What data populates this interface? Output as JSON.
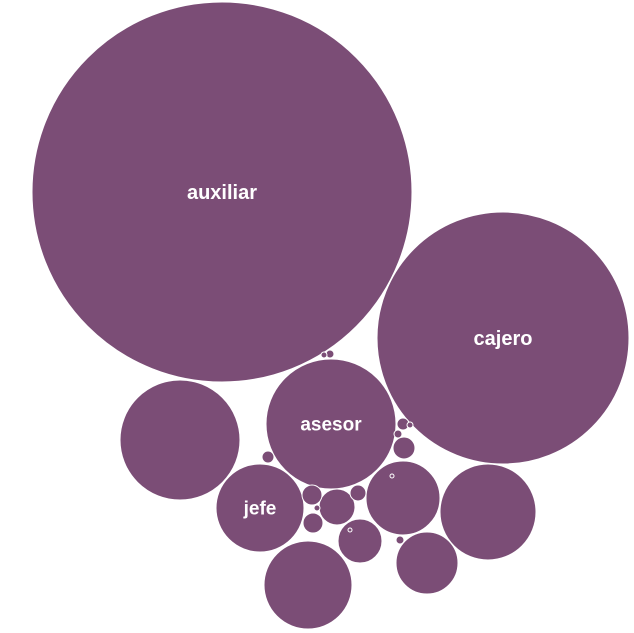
{
  "chart_data": {
    "type": "bubble",
    "color": "#7b4d76",
    "background": "#ffffff",
    "labels": {
      "auxiliar": "auxiliar",
      "cajero": "cajero",
      "asesor": "asesor",
      "jefe": "jefe"
    },
    "bubbles": [
      {
        "name": "auxiliar",
        "value": 36100,
        "label": "auxiliar"
      },
      {
        "name": "cajero",
        "value": 15876,
        "label": "cajero"
      },
      {
        "name": "asesor",
        "value": 4225,
        "label": "asesor"
      },
      {
        "name": "circle-b",
        "value": 3600
      },
      {
        "name": "jefe",
        "value": 1936,
        "label": "jefe"
      },
      {
        "name": "circle-c",
        "value": 2304
      },
      {
        "name": "circle-d",
        "value": 1936
      },
      {
        "name": "circle-e",
        "value": 1369
      },
      {
        "name": "circle-f",
        "value": 961
      },
      {
        "name": "circle-g",
        "value": 324
      },
      {
        "name": "circle-h",
        "value": 484
      },
      {
        "name": "circle-i",
        "value": 121
      },
      {
        "name": "circle-j",
        "value": 100
      },
      {
        "name": "circle-k",
        "value": 100
      },
      {
        "name": "circle-l",
        "value": 64
      },
      {
        "name": "circle-m",
        "value": 36
      },
      {
        "name": "circle-n",
        "value": 36
      },
      {
        "name": "circle-o",
        "value": 16
      },
      {
        "name": "circle-p",
        "value": 16
      },
      {
        "name": "circle-q",
        "value": 16
      },
      {
        "name": "circle-r",
        "value": 9
      },
      {
        "name": "circle-s",
        "value": 9
      },
      {
        "name": "circle-t",
        "value": 9
      },
      {
        "name": "circle-u",
        "value": 4
      },
      {
        "name": "circle-v",
        "value": 4
      }
    ]
  }
}
